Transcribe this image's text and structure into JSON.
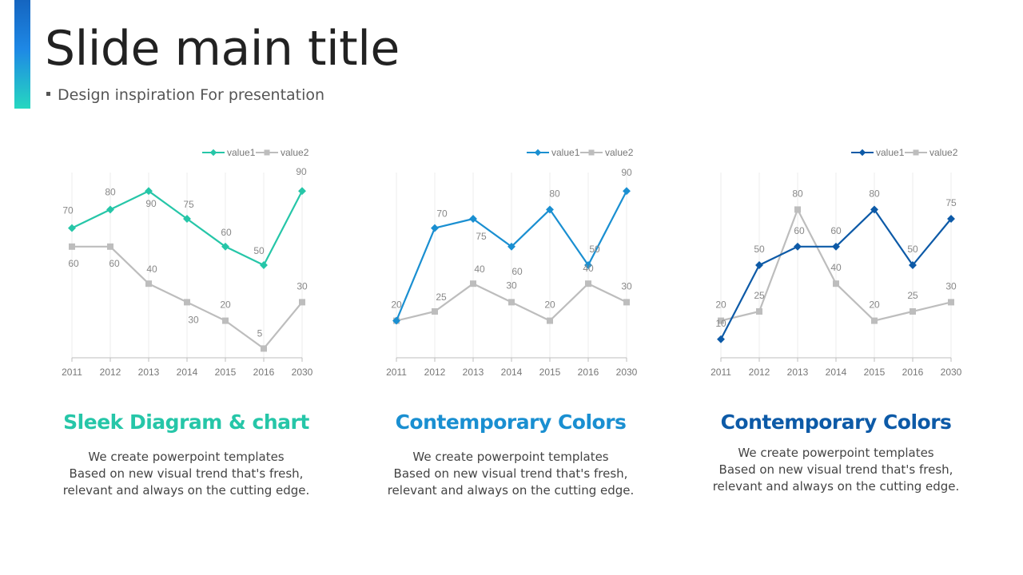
{
  "slide": {
    "title": "Slide main title",
    "subtitle": "Design inspiration For presentation"
  },
  "panels": [
    {
      "heading": "Sleek Diagram & chart",
      "heading_color": "#26c6a8",
      "lines": [
        "We create powerpoint templates",
        "Based on new visual trend that's fresh,",
        "relevant and always on the cutting edge."
      ]
    },
    {
      "heading": "Contemporary Colors",
      "heading_color": "#1a8fd1",
      "lines": [
        "We create powerpoint templates",
        "Based on new visual trend that's fresh,",
        "relevant and always on the cutting edge."
      ]
    },
    {
      "heading": "Contemporary Colors",
      "heading_color": "#0d5aa7",
      "lines": [
        "We create powerpoint templates",
        "Based on new visual trend that's fresh,",
        "relevant and always on the cutting edge."
      ]
    }
  ],
  "chart_data": [
    {
      "type": "line",
      "categories": [
        "2011",
        "2012",
        "2013",
        "2014",
        "2015",
        "2016",
        "2030"
      ],
      "ylim": [
        0,
        100
      ],
      "grid": true,
      "legend": "top-right",
      "series": [
        {
          "name": "value1",
          "values": [
            70,
            80,
            90,
            75,
            60,
            50,
            90
          ],
          "color": "#26c6a8",
          "marker": "diamond"
        },
        {
          "name": "value2",
          "values": [
            60,
            60,
            40,
            30,
            20,
            5,
            30
          ],
          "color": "#bdbdbd",
          "marker": "square"
        }
      ]
    },
    {
      "type": "line",
      "categories": [
        "2011",
        "2012",
        "2013",
        "2014",
        "2015",
        "2016",
        "2030"
      ],
      "ylim": [
        0,
        100
      ],
      "grid": true,
      "legend": "top-right",
      "series": [
        {
          "name": "value1",
          "values": [
            20,
            70,
            75,
            60,
            80,
            50,
            90
          ],
          "color": "#1a8fd1",
          "marker": "diamond"
        },
        {
          "name": "value2",
          "values": [
            20,
            25,
            40,
            30,
            20,
            40,
            30
          ],
          "color": "#bdbdbd",
          "marker": "square"
        }
      ]
    },
    {
      "type": "line",
      "categories": [
        "2011",
        "2012",
        "2013",
        "2014",
        "2015",
        "2016",
        "2030"
      ],
      "ylim": [
        0,
        100
      ],
      "grid": true,
      "legend": "top-right",
      "series": [
        {
          "name": "value1",
          "values": [
            10,
            50,
            60,
            60,
            80,
            50,
            75
          ],
          "color": "#0d5aa7",
          "marker": "diamond"
        },
        {
          "name": "value2",
          "values": [
            20,
            25,
            80,
            40,
            20,
            25,
            30
          ],
          "color": "#bdbdbd",
          "marker": "square"
        }
      ]
    }
  ]
}
